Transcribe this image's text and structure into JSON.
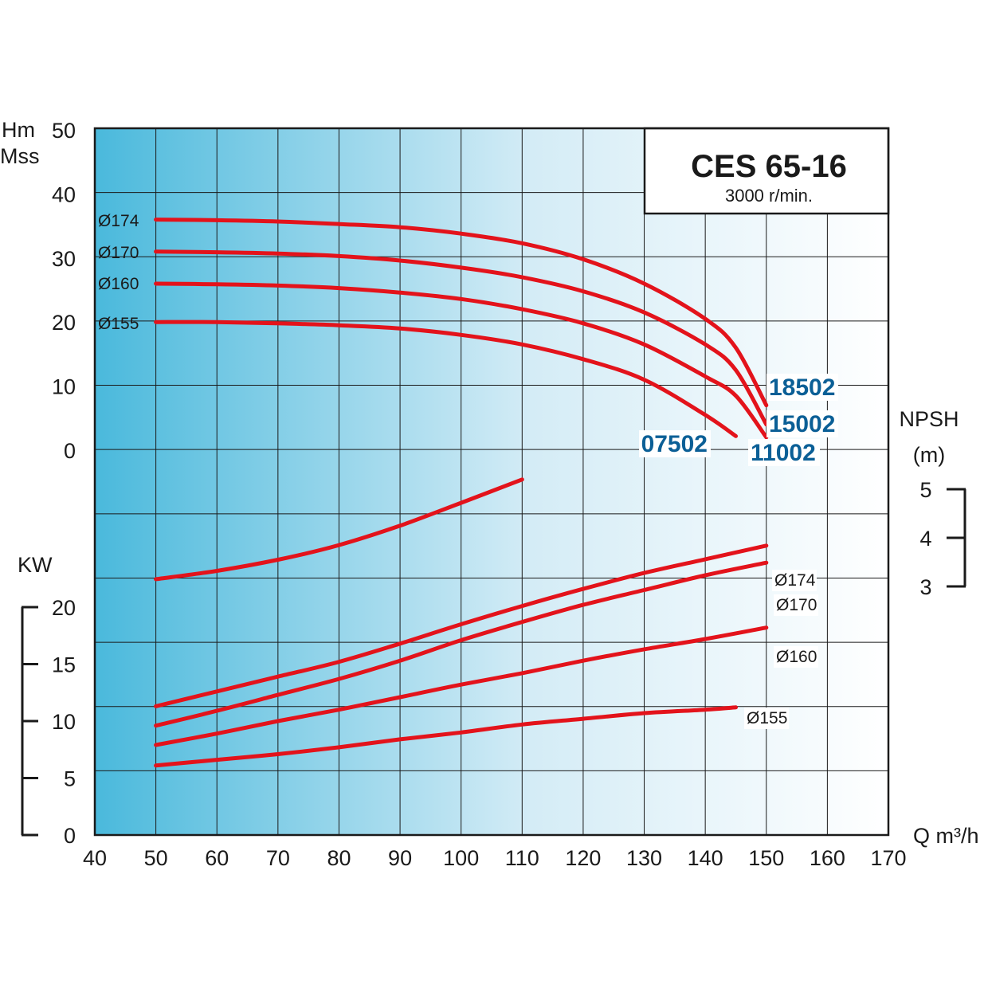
{
  "chart_data": {
    "type": "line",
    "title": "CES 65-16",
    "subtitle": "3000 r/min.",
    "x": {
      "label": "Q m³/h",
      "range": [
        40,
        170
      ],
      "ticks": [
        40,
        50,
        60,
        70,
        80,
        90,
        100,
        110,
        120,
        130,
        140,
        150,
        160,
        170
      ]
    },
    "head_axis": {
      "label_line1": "Hm",
      "label_line2": "Mss",
      "range": [
        0,
        50
      ],
      "ticks": [
        0,
        10,
        20,
        30,
        40,
        50
      ]
    },
    "power_axis": {
      "label": "KW",
      "range": [
        0,
        20
      ],
      "ticks": [
        0,
        5,
        10,
        15,
        20
      ]
    },
    "npsh_axis": {
      "label_line1": "NPSH",
      "label_line2": "(m)",
      "range": [
        3,
        5
      ],
      "ticks": [
        3,
        4,
        5
      ]
    },
    "head_curves": [
      {
        "name": "Ø174",
        "motor": "18502",
        "points": [
          [
            50,
            36
          ],
          [
            60,
            35.9
          ],
          [
            70,
            35.7
          ],
          [
            80,
            35.3
          ],
          [
            90,
            34.8
          ],
          [
            100,
            33.8
          ],
          [
            110,
            32.3
          ],
          [
            120,
            29.8
          ],
          [
            130,
            26
          ],
          [
            140,
            20.5
          ],
          [
            145,
            16
          ],
          [
            150,
            7
          ]
        ]
      },
      {
        "name": "Ø170",
        "motor": "15002",
        "points": [
          [
            50,
            31
          ],
          [
            60,
            30.9
          ],
          [
            70,
            30.7
          ],
          [
            80,
            30.3
          ],
          [
            90,
            29.6
          ],
          [
            100,
            28.5
          ],
          [
            110,
            27
          ],
          [
            120,
            24.8
          ],
          [
            130,
            21.5
          ],
          [
            140,
            16.5
          ],
          [
            145,
            12.5
          ],
          [
            150,
            4
          ]
        ]
      },
      {
        "name": "Ø160",
        "motor": "11002",
        "points": [
          [
            50,
            26
          ],
          [
            60,
            25.9
          ],
          [
            70,
            25.7
          ],
          [
            80,
            25.3
          ],
          [
            90,
            24.6
          ],
          [
            100,
            23.6
          ],
          [
            110,
            22
          ],
          [
            120,
            19.8
          ],
          [
            130,
            16.5
          ],
          [
            140,
            11.5
          ],
          [
            145,
            8.5
          ],
          [
            150,
            2
          ]
        ]
      },
      {
        "name": "Ø155",
        "motor": "07502",
        "points": [
          [
            50,
            20
          ],
          [
            60,
            20
          ],
          [
            70,
            19.8
          ],
          [
            80,
            19.5
          ],
          [
            90,
            19
          ],
          [
            100,
            18
          ],
          [
            110,
            16.5
          ],
          [
            120,
            14.2
          ],
          [
            130,
            11
          ],
          [
            140,
            5.5
          ],
          [
            145,
            2.2
          ]
        ]
      }
    ],
    "npsh_curve": {
      "points": [
        [
          50,
          3.15
        ],
        [
          60,
          3.32
        ],
        [
          70,
          3.55
        ],
        [
          80,
          3.85
        ],
        [
          90,
          4.25
        ],
        [
          100,
          4.72
        ],
        [
          110,
          5.2
        ]
      ]
    },
    "power_curves": [
      {
        "name": "Ø174",
        "points": [
          [
            50,
            11.3
          ],
          [
            60,
            12.6
          ],
          [
            70,
            13.9
          ],
          [
            80,
            15.2
          ],
          [
            90,
            16.8
          ],
          [
            100,
            18.5
          ],
          [
            110,
            20.1
          ],
          [
            120,
            21.6
          ],
          [
            130,
            23
          ],
          [
            140,
            24.2
          ],
          [
            150,
            25.4
          ]
        ]
      },
      {
        "name": "Ø170",
        "points": [
          [
            50,
            9.6
          ],
          [
            60,
            10.9
          ],
          [
            70,
            12.3
          ],
          [
            80,
            13.7
          ],
          [
            90,
            15.3
          ],
          [
            100,
            17.1
          ],
          [
            110,
            18.7
          ],
          [
            120,
            20.2
          ],
          [
            130,
            21.5
          ],
          [
            140,
            22.8
          ],
          [
            150,
            23.9
          ]
        ]
      },
      {
        "name": "Ø160",
        "points": [
          [
            50,
            7.9
          ],
          [
            60,
            8.9
          ],
          [
            70,
            10
          ],
          [
            80,
            11
          ],
          [
            90,
            12.1
          ],
          [
            100,
            13.2
          ],
          [
            110,
            14.2
          ],
          [
            120,
            15.3
          ],
          [
            130,
            16.3
          ],
          [
            140,
            17.2
          ],
          [
            150,
            18.2
          ]
        ]
      },
      {
        "name": "Ø155",
        "points": [
          [
            50,
            6.1
          ],
          [
            60,
            6.6
          ],
          [
            70,
            7.1
          ],
          [
            80,
            7.7
          ],
          [
            90,
            8.4
          ],
          [
            100,
            9
          ],
          [
            110,
            9.7
          ],
          [
            120,
            10.2
          ],
          [
            130,
            10.7
          ],
          [
            140,
            11
          ],
          [
            145,
            11.2
          ]
        ]
      }
    ],
    "grid": true,
    "legend": "none",
    "colors": {
      "curve": "#e3131b",
      "motor_label": "#0b5f96",
      "bg_left": "#4ab9dc",
      "bg_right": "#ffffff",
      "grid": "#1a1a1a"
    }
  }
}
